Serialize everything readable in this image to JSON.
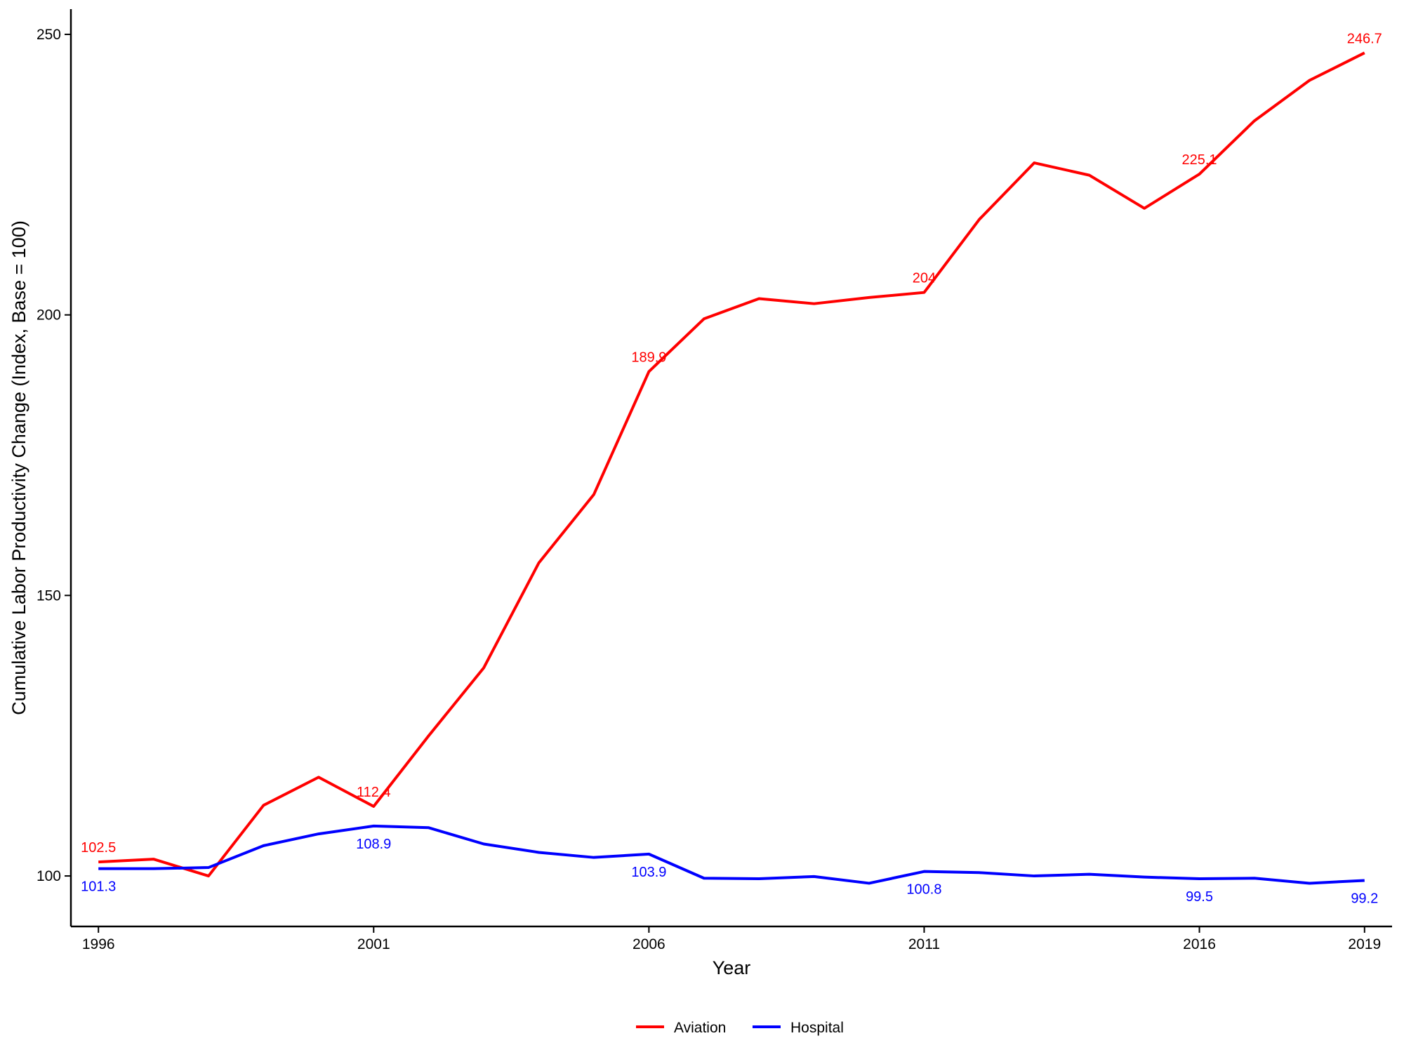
{
  "chart_data": {
    "type": "line",
    "xlabel": "Year",
    "ylabel": "Cumulative Labor Productivity Change (Index, Base = 100)",
    "xlim": [
      1995.5,
      2019.5
    ],
    "ylim": [
      91,
      254.5
    ],
    "x_ticks": [
      1996,
      2001,
      2006,
      2011,
      2016,
      2019
    ],
    "y_ticks": [
      100,
      150,
      200,
      250
    ],
    "grid": false,
    "legend_position": "bottom",
    "x": [
      1996,
      1997,
      1998,
      1999,
      2000,
      2001,
      2002,
      2003,
      2004,
      2005,
      2006,
      2007,
      2008,
      2009,
      2010,
      2011,
      2012,
      2013,
      2014,
      2015,
      2016,
      2017,
      2018,
      2019
    ],
    "series": [
      {
        "name": "Aviation",
        "color": "#ff0000",
        "values": [
          102.5,
          103.0,
          100.0,
          112.6,
          117.6,
          112.4,
          125.0,
          137.1,
          155.8,
          168.0,
          189.9,
          199.3,
          202.9,
          202.0,
          203.1,
          204.0,
          217.0,
          227.1,
          224.9,
          219.0,
          225.1,
          234.6,
          241.8,
          246.7
        ],
        "labels": [
          {
            "x": 1996,
            "text": "102.5"
          },
          {
            "x": 2001,
            "text": "112.4"
          },
          {
            "x": 2006,
            "text": "189.9"
          },
          {
            "x": 2011,
            "text": "204"
          },
          {
            "x": 2016,
            "text": "225.1"
          },
          {
            "x": 2019,
            "text": "246.7"
          }
        ]
      },
      {
        "name": "Hospital",
        "color": "#0000ff",
        "values": [
          101.3,
          101.3,
          101.5,
          105.4,
          107.5,
          108.9,
          108.6,
          105.7,
          104.2,
          103.3,
          103.9,
          99.6,
          99.5,
          99.9,
          98.7,
          100.8,
          100.6,
          100.0,
          100.3,
          99.8,
          99.5,
          99.6,
          98.7,
          99.2
        ],
        "labels": [
          {
            "x": 1996,
            "text": "101.3"
          },
          {
            "x": 2001,
            "text": "108.9"
          },
          {
            "x": 2006,
            "text": "103.9"
          },
          {
            "x": 2011,
            "text": "100.8"
          },
          {
            "x": 2016,
            "text": "99.5"
          },
          {
            "x": 2019,
            "text": "99.2"
          }
        ]
      }
    ]
  }
}
